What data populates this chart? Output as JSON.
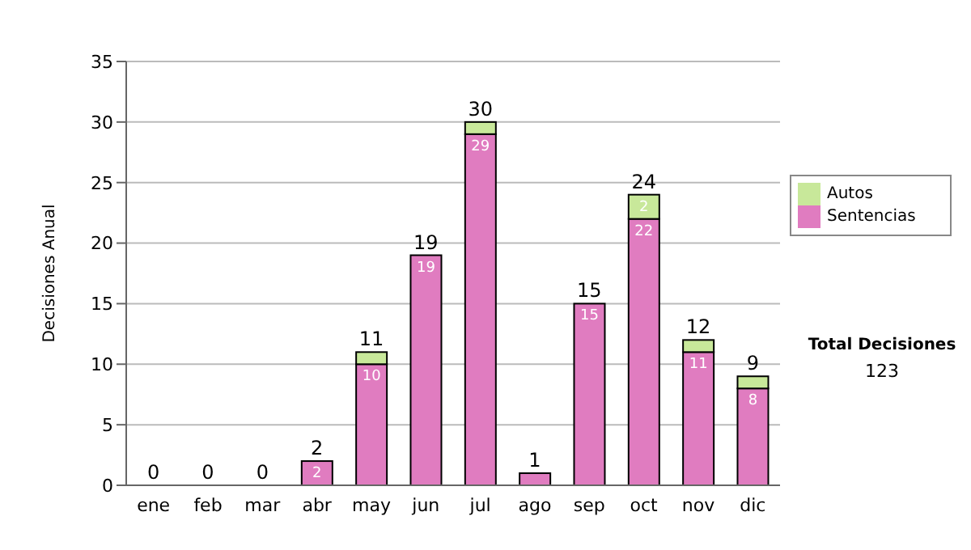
{
  "chart_data": {
    "type": "bar",
    "stacked": true,
    "ylabel": "Decisiones Anual",
    "categories": [
      "ene",
      "feb",
      "mar",
      "abr",
      "may",
      "jun",
      "jul",
      "ago",
      "sep",
      "oct",
      "nov",
      "dic"
    ],
    "series": [
      {
        "name": "Sentencias",
        "color": "#e07cc0",
        "values": [
          0,
          0,
          0,
          2,
          10,
          19,
          29,
          1,
          15,
          22,
          11,
          8
        ],
        "value_labels": [
          null,
          null,
          null,
          "2",
          "10",
          "19",
          "29",
          null,
          "15",
          "22",
          "11",
          "8"
        ]
      },
      {
        "name": "Autos",
        "color": "#c8e89a",
        "values": [
          0,
          0,
          0,
          0,
          1,
          0,
          1,
          0,
          0,
          2,
          1,
          1
        ],
        "value_labels": [
          null,
          null,
          null,
          null,
          null,
          null,
          null,
          null,
          null,
          "2",
          null,
          null
        ]
      }
    ],
    "totals": [
      "0",
      "0",
      "0",
      "2",
      "11",
      "19",
      "30",
      "1",
      "15",
      "24",
      "12",
      "9"
    ],
    "ylim": [
      0,
      35
    ],
    "yticks": [
      0,
      5,
      10,
      15,
      20,
      25,
      30,
      35
    ],
    "grid": "y",
    "legend": "right",
    "annotations": [
      "Total Decisiones",
      "123"
    ]
  }
}
